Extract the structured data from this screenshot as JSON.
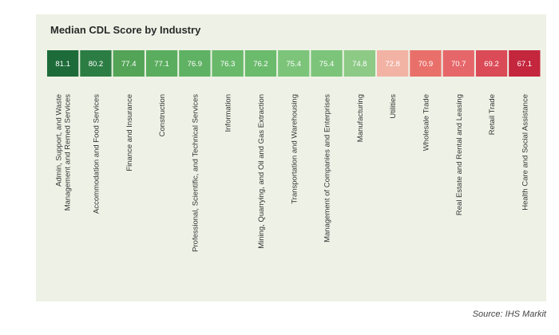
{
  "chart_data": {
    "type": "heatmap",
    "title": "Median CDL Score by Industry",
    "categories": [
      [
        "Admin, Support, and Waste",
        "Management and Remed Services"
      ],
      [
        "Accommodation and Food Services"
      ],
      [
        "Finance and Insurance"
      ],
      [
        "Construction"
      ],
      [
        "Professional, Scientific, and Technical Services"
      ],
      [
        "Information"
      ],
      [
        "Mining, Quarrying, and Oil and Gas Extraction"
      ],
      [
        "Transportation and Warehousing"
      ],
      [
        "Management of Companies and Enterprises"
      ],
      [
        "Manufacturing"
      ],
      [
        "Utilities"
      ],
      [
        "Wholesale Trade"
      ],
      [
        "Real Estate and Rental and Leasing"
      ],
      [
        "Retail Trade"
      ],
      [
        "Health Care and Social Assistance"
      ]
    ],
    "values": [
      81.1,
      80.2,
      77.4,
      77.1,
      76.9,
      76.3,
      76.2,
      75.4,
      75.4,
      74.8,
      72.8,
      70.9,
      70.7,
      69.2,
      67.1
    ],
    "colors": [
      "#1e6b3a",
      "#2b7d44",
      "#53a457",
      "#5aad5e",
      "#5fb163",
      "#69b96b",
      "#6bbb6d",
      "#7cc47a",
      "#7cc47a",
      "#8cca86",
      "#f2b3a5",
      "#e9706a",
      "#e6676a",
      "#db4a57",
      "#c4263d"
    ]
  },
  "source": "Source: IHS Markit"
}
